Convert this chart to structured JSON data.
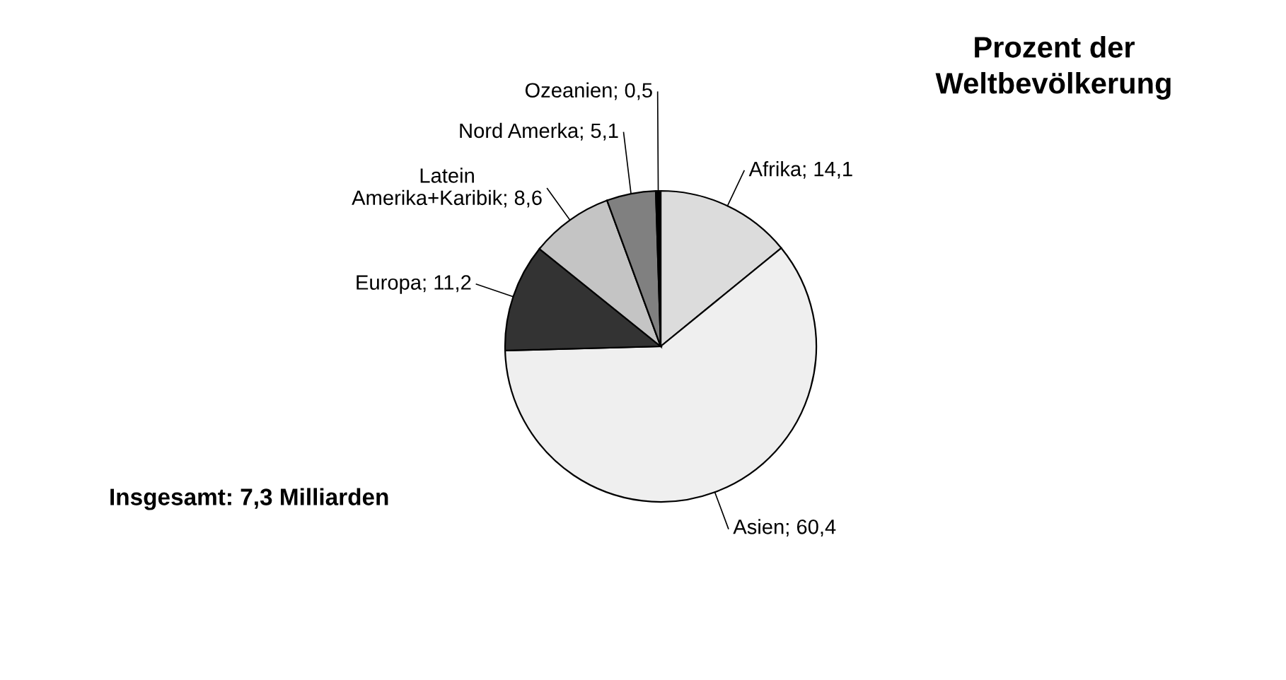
{
  "chart_data": {
    "type": "pie",
    "title": "Prozent der\nWeltbevölkerung",
    "categories": [
      "Afrika",
      "Asien",
      "Europa",
      "Latein\nAmerika+Karibik",
      "Nord Amerka",
      "Ozeanien"
    ],
    "values": [
      14.1,
      60.4,
      11.2,
      8.6,
      5.1,
      0.5
    ],
    "value_labels": [
      "14,1",
      "60,4",
      "11,2",
      "8,6",
      "5,1",
      "0,5"
    ],
    "colors": [
      "#dcdcdc",
      "#efefef",
      "#333333",
      "#c4c4c4",
      "#808080",
      "#000000"
    ],
    "annotations": [
      "Insgesamt: 7,3 Milliarden"
    ],
    "legend": false
  }
}
